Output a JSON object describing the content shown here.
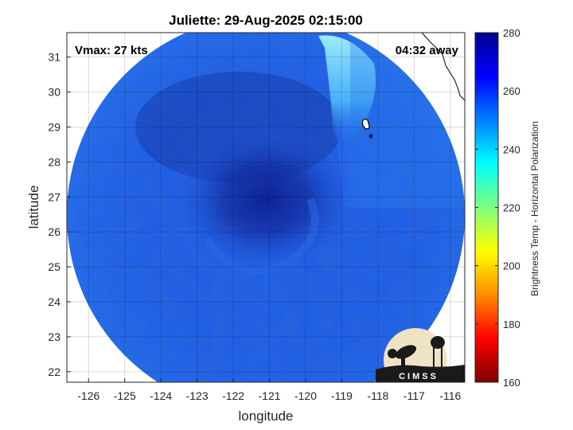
{
  "title": "Juliette: 29-Aug-2025 02:15:00",
  "vmax_label": "Vmax: 27 kts",
  "time_away": "04:32 away",
  "xlabel": "longitude",
  "ylabel": "latitude",
  "colorbar_label": "Brightness Temp - Horizontal Polarization",
  "logo_text": "CIMSS",
  "chart_data": {
    "type": "heatmap",
    "xlim": [
      -126.6,
      -115.6
    ],
    "ylim": [
      21.7,
      31.7
    ],
    "xticks": [
      -126,
      -125,
      -124,
      -123,
      -122,
      -121,
      -120,
      -119,
      -118,
      -117,
      -116
    ],
    "yticks": [
      22,
      23,
      24,
      25,
      26,
      27,
      28,
      29,
      30,
      31
    ],
    "grid": true,
    "swath_center": [
      -121.0,
      26.7
    ],
    "storm_center": [
      -121.0,
      26.7
    ],
    "colorbar": {
      "min": 160,
      "max": 280,
      "ticks": [
        160,
        180,
        200,
        220,
        240,
        260,
        280
      ],
      "colormap": "jet",
      "colors": [
        "#7f0000",
        "#ff0000",
        "#ff8c00",
        "#ffff00",
        "#7fff7f",
        "#00ffff",
        "#0080ff",
        "#0000ff",
        "#00008f"
      ]
    },
    "background_value": 254,
    "colors": {
      "swath_base": "#1f5fe6",
      "swath_dark": "#1838b8",
      "warm_core": "#0c1f8f",
      "cyan_patch": "#7fe6ff",
      "coast": "#000000"
    }
  }
}
